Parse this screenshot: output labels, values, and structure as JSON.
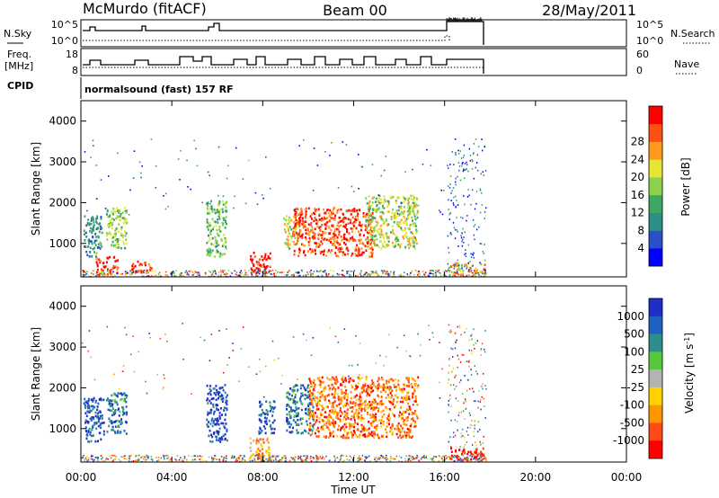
{
  "header": {
    "station": "McMurdo (fitACF)",
    "beam": "Beam 00",
    "date": "28/May/2011"
  },
  "param_panels": {
    "nsky_label": "N.Sky",
    "nsearch_label": "N.Search",
    "nsky_ticks": [
      "10^5",
      "10^0"
    ],
    "nsearch_ticks": [
      "10^5",
      "10^0"
    ],
    "freq_label_line1": "Freq.",
    "freq_label_line2": "[MHz]",
    "freq_ticks": [
      "18",
      "8"
    ],
    "nave_label": "Nave",
    "nave_ticks": [
      "60",
      "0"
    ],
    "cpid_label": "CPID",
    "cpid_text": "normalsound (fast) 157 RF"
  },
  "x_axis": {
    "label": "Time UT",
    "ticks": [
      "00:00",
      "04:00",
      "08:00",
      "12:00",
      "16:00",
      "20:00",
      "00:00"
    ]
  },
  "colors": {
    "power_scale": [
      "#0000ff",
      "#2850c8",
      "#2e8f8a",
      "#3ea860",
      "#8cd24c",
      "#e6e632",
      "#ff9a1e",
      "#ff5014",
      "#ff0000"
    ],
    "velocity_scale": [
      "#1e2ec8",
      "#2060c0",
      "#2e8f8a",
      "#55c83c",
      "#b4b4b4",
      "#ffd200",
      "#ff9600",
      "#ff4a14",
      "#ff0000"
    ]
  },
  "chart_data": [
    {
      "type": "heatmap",
      "name": "power",
      "ylabel": "Slant Range [km]",
      "xlabel": "",
      "yticks": [
        "1000",
        "2000",
        "3000",
        "4000"
      ],
      "ylim_km": [
        180,
        4500
      ],
      "xlim_hours": [
        0,
        24
      ],
      "colorbar_label": "Power [dB]",
      "colorbar_ticks": [
        "4",
        "8",
        "12",
        "16",
        "20",
        "24",
        "28"
      ],
      "features": [
        {
          "t_start": 0.1,
          "t_end": 0.9,
          "range_km": [
            700,
            1700
          ],
          "level": 0.3
        },
        {
          "t_start": 0.6,
          "t_end": 1.6,
          "range_km": [
            250,
            700
          ],
          "level": 0.9
        },
        {
          "t_start": 1.1,
          "t_end": 2.0,
          "range_km": [
            900,
            1900
          ],
          "level": 0.5
        },
        {
          "t_start": 2.2,
          "t_end": 3.1,
          "range_km": [
            300,
            600
          ],
          "level": 0.9
        },
        {
          "t_start": 5.5,
          "t_end": 6.4,
          "range_km": [
            700,
            2100
          ],
          "level": 0.45
        },
        {
          "t_start": 7.4,
          "t_end": 8.3,
          "range_km": [
            250,
            800
          ],
          "level": 0.95
        },
        {
          "t_start": 8.9,
          "t_end": 9.6,
          "range_km": [
            900,
            1700
          ],
          "level": 0.6
        },
        {
          "t_start": 9.3,
          "t_end": 12.8,
          "range_km": [
            700,
            1900
          ],
          "level": 0.85
        },
        {
          "t_start": 12.5,
          "t_end": 14.8,
          "range_km": [
            900,
            2200
          ],
          "level": 0.55
        },
        {
          "t_start": 16.2,
          "t_end": 17.8,
          "range_km": [
            250,
            550
          ],
          "level": 0.7
        }
      ]
    },
    {
      "type": "heatmap",
      "name": "velocity",
      "ylabel": "Slant Range [km]",
      "xlabel": "Time UT",
      "yticks": [
        "1000",
        "2000",
        "3000",
        "4000"
      ],
      "ylim_km": [
        180,
        4500
      ],
      "xlim_hours": [
        0,
        24
      ],
      "colorbar_label": "Velocity [m s^-1]",
      "colorbar_ticks": [
        "1000",
        "500",
        "100",
        "25",
        "-25",
        "-100",
        "-500",
        "-1000"
      ],
      "features": [
        {
          "t_start": 0.1,
          "t_end": 1.0,
          "range_km": [
            700,
            1800
          ],
          "level": 0.15
        },
        {
          "t_start": 1.1,
          "t_end": 2.0,
          "range_km": [
            900,
            1900
          ],
          "level": 0.2
        },
        {
          "t_start": 5.5,
          "t_end": 6.4,
          "range_km": [
            700,
            2100
          ],
          "level": 0.1
        },
        {
          "t_start": 7.8,
          "t_end": 8.5,
          "range_km": [
            900,
            1700
          ],
          "level": 0.15
        },
        {
          "t_start": 7.4,
          "t_end": 8.3,
          "range_km": [
            250,
            800
          ],
          "level": 0.7
        },
        {
          "t_start": 9.0,
          "t_end": 10.2,
          "range_km": [
            900,
            2100
          ],
          "level": 0.2
        },
        {
          "t_start": 10.0,
          "t_end": 14.8,
          "range_km": [
            800,
            2300
          ],
          "level": 0.78
        },
        {
          "t_start": 16.2,
          "t_end": 17.8,
          "range_km": [
            250,
            550
          ],
          "level": 0.95
        }
      ]
    }
  ]
}
